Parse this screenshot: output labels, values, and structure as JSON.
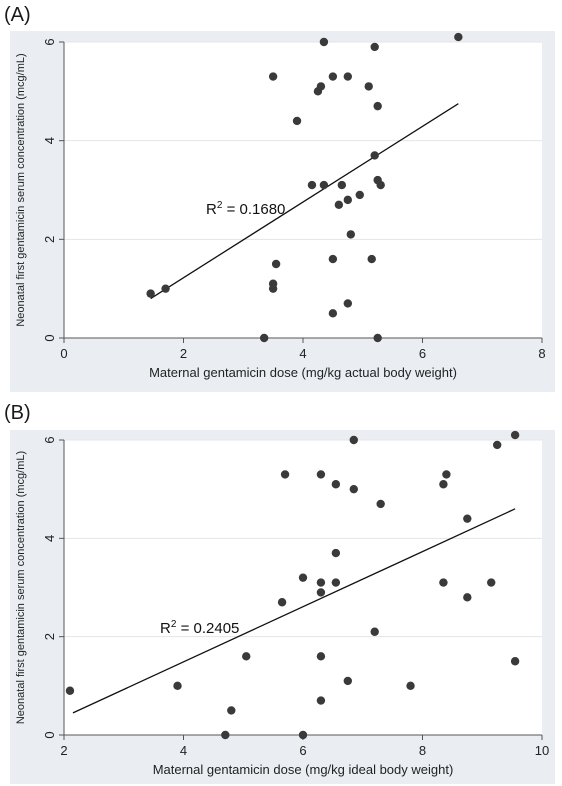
{
  "chart_data": [
    {
      "type": "scatter",
      "panel_label": "(A)",
      "xlabel": "Maternal gentamicin dose (mg/kg actual body weight)",
      "ylabel": "Neonatal first gentamicin serum concentration (mcg/mL)",
      "xlim": [
        0,
        8
      ],
      "ylim": [
        0,
        6
      ],
      "xticks": [
        0,
        2,
        4,
        6,
        8
      ],
      "yticks": [
        0,
        2,
        4,
        6
      ],
      "grid": true,
      "annotation": {
        "prefix": "R",
        "sup": "2",
        "text": " = 0.1680"
      },
      "fit_line": [
        [
          1.45,
          0.8
        ],
        [
          6.6,
          4.75
        ]
      ],
      "points": [
        [
          1.45,
          0.9
        ],
        [
          1.7,
          1.0
        ],
        [
          3.35,
          0.0
        ],
        [
          3.5,
          1.0
        ],
        [
          3.5,
          1.1
        ],
        [
          3.55,
          1.5
        ],
        [
          3.5,
          5.3
        ],
        [
          3.9,
          4.4
        ],
        [
          4.15,
          3.1
        ],
        [
          4.25,
          5.0
        ],
        [
          4.3,
          5.1
        ],
        [
          4.35,
          6.0
        ],
        [
          4.35,
          3.1
        ],
        [
          4.5,
          1.6
        ],
        [
          4.5,
          0.5
        ],
        [
          4.5,
          5.3
        ],
        [
          4.6,
          2.7
        ],
        [
          4.65,
          3.1
        ],
        [
          4.75,
          2.8
        ],
        [
          4.75,
          0.7
        ],
        [
          4.75,
          5.3
        ],
        [
          4.8,
          2.1
        ],
        [
          4.95,
          2.9
        ],
        [
          5.1,
          5.1
        ],
        [
          5.15,
          1.6
        ],
        [
          5.2,
          3.7
        ],
        [
          5.2,
          5.9
        ],
        [
          5.25,
          4.7
        ],
        [
          5.25,
          0.0
        ],
        [
          5.25,
          3.2
        ],
        [
          5.3,
          3.1
        ],
        [
          6.6,
          6.1
        ]
      ]
    },
    {
      "type": "scatter",
      "panel_label": "(B)",
      "xlabel": "Maternal gentamicin dose (mg/kg ideal body weight)",
      "ylabel": "Neonatal first gentamicin serum concentration (mcg/mL)",
      "xlim": [
        2,
        10
      ],
      "ylim": [
        0,
        6
      ],
      "xticks": [
        2,
        4,
        6,
        8,
        10
      ],
      "yticks": [
        0,
        2,
        4,
        6
      ],
      "grid": true,
      "annotation": {
        "prefix": "R",
        "sup": "2",
        "text": " = 0.2405"
      },
      "fit_line": [
        [
          2.15,
          0.45
        ],
        [
          9.55,
          4.6
        ]
      ],
      "points": [
        [
          2.1,
          0.9
        ],
        [
          3.9,
          1.0
        ],
        [
          4.7,
          0.0
        ],
        [
          4.8,
          0.5
        ],
        [
          5.05,
          1.6
        ],
        [
          5.65,
          2.7
        ],
        [
          5.7,
          5.3
        ],
        [
          6.0,
          3.2
        ],
        [
          6.0,
          0.0
        ],
        [
          6.3,
          3.1
        ],
        [
          6.3,
          2.9
        ],
        [
          6.3,
          5.3
        ],
        [
          6.3,
          1.6
        ],
        [
          6.3,
          0.7
        ],
        [
          6.55,
          5.1
        ],
        [
          6.55,
          3.7
        ],
        [
          6.55,
          3.1
        ],
        [
          6.75,
          1.1
        ],
        [
          6.85,
          5.0
        ],
        [
          6.85,
          6.0
        ],
        [
          7.2,
          2.1
        ],
        [
          7.3,
          4.7
        ],
        [
          7.8,
          1.0
        ],
        [
          8.35,
          5.1
        ],
        [
          8.35,
          3.1
        ],
        [
          8.4,
          5.3
        ],
        [
          8.75,
          4.4
        ],
        [
          8.75,
          2.8
        ],
        [
          9.15,
          3.1
        ],
        [
          9.25,
          5.9
        ],
        [
          9.55,
          6.1
        ],
        [
          9.55,
          1.5
        ]
      ]
    }
  ]
}
